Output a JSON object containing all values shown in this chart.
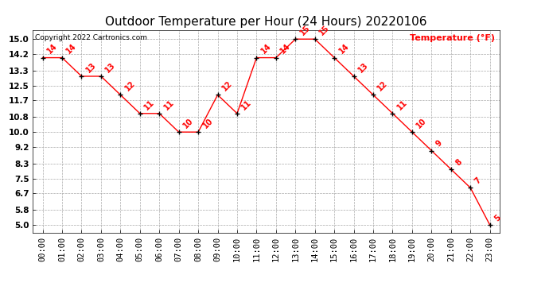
{
  "title": "Outdoor Temperature per Hour (24 Hours) 20220106",
  "copyright_text": "Copyright 2022 Cartronics.com",
  "legend_label": "Temperature (°F)",
  "hours": [
    "00:00",
    "01:00",
    "02:00",
    "03:00",
    "04:00",
    "05:00",
    "06:00",
    "07:00",
    "08:00",
    "09:00",
    "10:00",
    "11:00",
    "12:00",
    "13:00",
    "14:00",
    "15:00",
    "16:00",
    "17:00",
    "18:00",
    "19:00",
    "20:00",
    "21:00",
    "22:00",
    "23:00"
  ],
  "temperatures": [
    14,
    14,
    13,
    13,
    12,
    11,
    11,
    10,
    10,
    12,
    11,
    14,
    14,
    15,
    15,
    14,
    13,
    12,
    11,
    10,
    9,
    8,
    7,
    5
  ],
  "line_color": "red",
  "marker": "+",
  "marker_color": "black",
  "label_color": "red",
  "bg_color": "white",
  "grid_color": "#aaaaaa",
  "title_color": "black",
  "yticks": [
    5.0,
    5.8,
    6.7,
    7.5,
    8.3,
    9.2,
    10.0,
    10.8,
    11.7,
    12.5,
    13.3,
    14.2,
    15.0
  ],
  "ylim": [
    4.6,
    15.5
  ],
  "title_fontsize": 11,
  "label_fontsize": 7,
  "tick_fontsize": 7.5,
  "copyright_fontsize": 6.5,
  "legend_fontsize": 8
}
